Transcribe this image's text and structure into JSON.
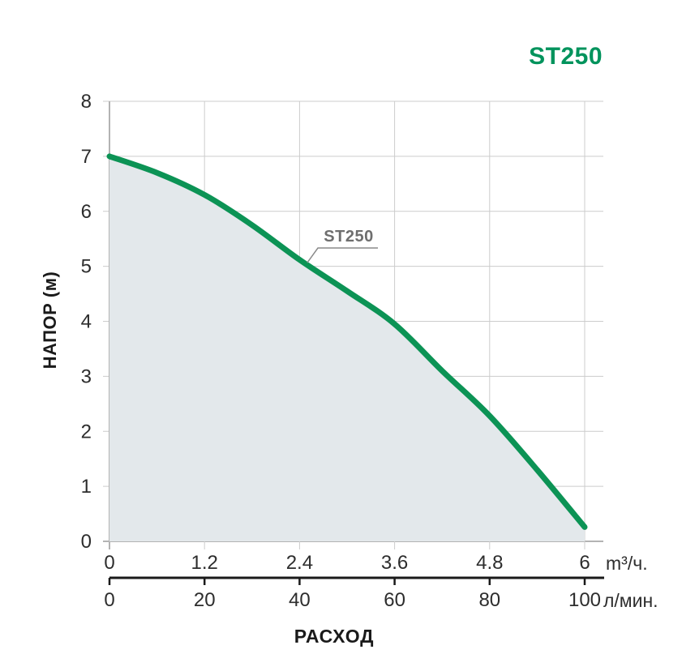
{
  "page": {
    "title": "ST250"
  },
  "colors": {
    "brand_green": "#00935c",
    "curve_green": "#0c9355",
    "area_fill": "#e3e8eb",
    "grid": "#cccccc",
    "axis": "#b3b3b3",
    "tick_text": "#2d2d2d",
    "scale_line": "#1a1a1a",
    "annotation_gray": "#8a8a8a"
  },
  "chart_data": {
    "type": "line",
    "title": "ST250",
    "curve_label": "ST250",
    "grid": true,
    "legend": false,
    "y_axis": {
      "label": "НАПОР (м)",
      "range": [
        0,
        8
      ],
      "ticks": [
        0,
        1,
        2,
        3,
        4,
        5,
        6,
        7,
        8
      ]
    },
    "x_axis": {
      "label": "РАСХОД",
      "scales": [
        {
          "unit": "m³/ч.",
          "range": [
            0,
            6
          ],
          "ticks": [
            0,
            1.2,
            2.4,
            3.6,
            4.8,
            6
          ]
        },
        {
          "unit": "л/мин.",
          "range": [
            0,
            100
          ],
          "ticks": [
            0,
            20,
            40,
            60,
            80,
            100
          ]
        }
      ]
    },
    "series": [
      {
        "name": "ST250",
        "x": [
          0,
          0.6,
          1.2,
          1.8,
          2.4,
          3.0,
          3.6,
          4.2,
          4.8,
          5.4,
          6.0
        ],
        "y": [
          7.0,
          6.7,
          6.3,
          5.75,
          5.12,
          4.55,
          3.95,
          3.1,
          2.28,
          1.3,
          0.26
        ]
      }
    ]
  }
}
